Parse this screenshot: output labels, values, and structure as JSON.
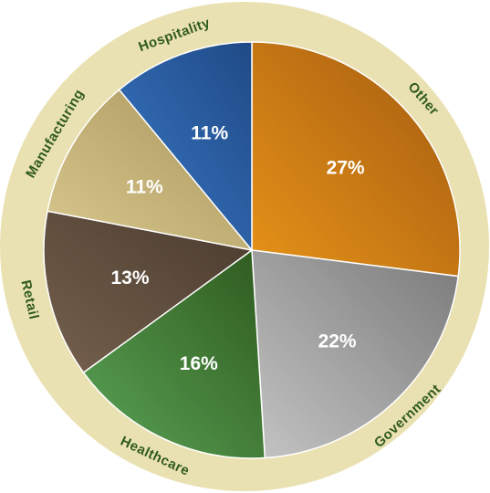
{
  "chart_data": {
    "type": "pie",
    "categories": [
      "Other",
      "Government",
      "Healthcare",
      "Retail",
      "Manufacturing",
      "Hospitality"
    ],
    "values": [
      27,
      22,
      16,
      13,
      11,
      11
    ],
    "value_labels": [
      "27%",
      "22%",
      "16%",
      "13%",
      "11%",
      "11%"
    ],
    "unit": "%",
    "start": "12 o'clock",
    "direction": "clockwise",
    "legend": "category labels on outer ring",
    "colors": {
      "ring": "#eae1b2",
      "ring_text": "#2f5a1e",
      "value_text": "#ffffff",
      "slices": [
        [
          "#e69318",
          "#a35a10"
        ],
        [
          "#c4c4c4",
          "#7a7a7a"
        ],
        [
          "#5aa356",
          "#2f5a1e"
        ],
        [
          "#75604d",
          "#4a3b2e"
        ],
        [
          "#d9c88f",
          "#a8955a"
        ],
        [
          "#3a78c6",
          "#1f4a86"
        ]
      ]
    }
  }
}
